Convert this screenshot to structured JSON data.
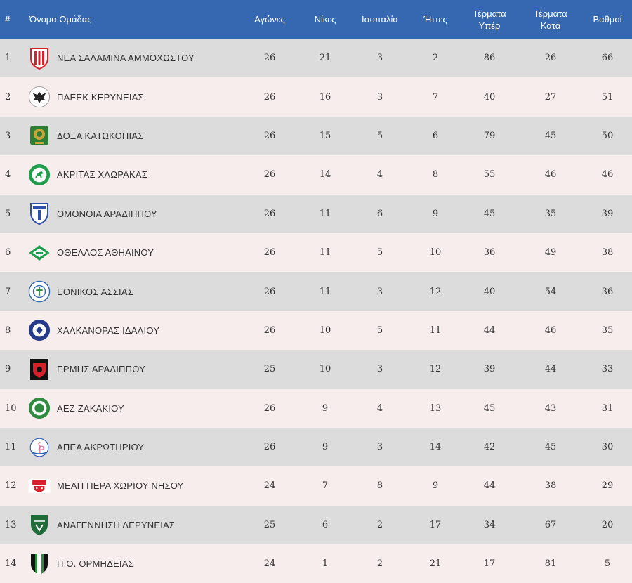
{
  "table": {
    "headers": {
      "rank": "#",
      "team": "Όνομα Ομάδας",
      "played": "Αγώνες",
      "wins": "Νίκες",
      "draws": "Ισοπαλία",
      "losses": "Ήττες",
      "goals_for_1": "Τέρματα",
      "goals_for_2": "Υπέρ",
      "goals_against_1": "Τέρματα",
      "goals_against_2": "Κατά",
      "points": "Βαθμοί"
    },
    "rows": [
      {
        "rank": "1",
        "team": "ΝΕΑ ΣΑΛΑΜΙΝΑ ΑΜΜΟΧΩΣΤΟΥ",
        "played": "26",
        "wins": "21",
        "draws": "3",
        "losses": "2",
        "gf": "86",
        "ga": "26",
        "points": "66"
      },
      {
        "rank": "2",
        "team": "ΠΑΕΕΚ ΚΕΡΥΝΕΙΑΣ",
        "played": "26",
        "wins": "16",
        "draws": "3",
        "losses": "7",
        "gf": "40",
        "ga": "27",
        "points": "51"
      },
      {
        "rank": "3",
        "team": "ΔΟΞΑ ΚΑΤΩΚΟΠΙΑΣ",
        "played": "26",
        "wins": "15",
        "draws": "5",
        "losses": "6",
        "gf": "79",
        "ga": "45",
        "points": "50"
      },
      {
        "rank": "4",
        "team": "ΑΚΡΙΤΑΣ ΧΛΩΡΑΚΑΣ",
        "played": "26",
        "wins": "14",
        "draws": "4",
        "losses": "8",
        "gf": "55",
        "ga": "46",
        "points": "46"
      },
      {
        "rank": "5",
        "team": "ΟΜΟΝΟΙΑ ΑΡΑΔΙΠΠΟΥ",
        "played": "26",
        "wins": "11",
        "draws": "6",
        "losses": "9",
        "gf": "45",
        "ga": "35",
        "points": "39"
      },
      {
        "rank": "6",
        "team": "ΟΘΕΛΛΟΣ ΑΘΗΑΙΝΟΥ",
        "played": "26",
        "wins": "11",
        "draws": "5",
        "losses": "10",
        "gf": "36",
        "ga": "49",
        "points": "38"
      },
      {
        "rank": "7",
        "team": "ΕΘΝΙΚΟΣ ΑΣΣΙΑΣ",
        "played": "26",
        "wins": "11",
        "draws": "3",
        "losses": "12",
        "gf": "40",
        "ga": "54",
        "points": "36"
      },
      {
        "rank": "8",
        "team": "ΧΑΛΚΑΝΟΡΑΣ ΙΔΑΛΙΟΥ",
        "played": "26",
        "wins": "10",
        "draws": "5",
        "losses": "11",
        "gf": "44",
        "ga": "46",
        "points": "35"
      },
      {
        "rank": "9",
        "team": "ΕΡΜΗΣ ΑΡΑΔΙΠΠΟΥ",
        "played": "25",
        "wins": "10",
        "draws": "3",
        "losses": "12",
        "gf": "39",
        "ga": "44",
        "points": "33"
      },
      {
        "rank": "10",
        "team": "ΑΕΖ ΖΑΚΑΚΙΟΥ",
        "played": "26",
        "wins": "9",
        "draws": "4",
        "losses": "13",
        "gf": "45",
        "ga": "43",
        "points": "31"
      },
      {
        "rank": "11",
        "team": "ΑΠΕΑ ΑΚΡΩΤΗΡΙΟΥ",
        "played": "26",
        "wins": "9",
        "draws": "3",
        "losses": "14",
        "gf": "42",
        "ga": "45",
        "points": "30"
      },
      {
        "rank": "12",
        "team": "ΜΕΑΠ ΠΕΡΑ ΧΩΡΙΟΥ ΝΗΣΟΥ",
        "played": "24",
        "wins": "7",
        "draws": "8",
        "losses": "9",
        "gf": "44",
        "ga": "38",
        "points": "29"
      },
      {
        "rank": "13",
        "team": "ΑΝΑΓΕΝΝΗΣΗ ΔΕΡΥΝΕΙΑΣ",
        "played": "25",
        "wins": "6",
        "draws": "2",
        "losses": "17",
        "gf": "34",
        "ga": "67",
        "points": "20"
      },
      {
        "rank": "14",
        "team": "Π.Ο. ΟΡΜΗΔΕΙΑΣ",
        "played": "24",
        "wins": "1",
        "draws": "2",
        "losses": "21",
        "gf": "17",
        "ga": "81",
        "points": "5"
      }
    ]
  },
  "logos": [
    {
      "icon": "nea-salamina-crest-icon",
      "primary": "#d7212a",
      "secondary": "#ffffff"
    },
    {
      "icon": "paeek-eagle-crest-icon",
      "primary": "#222222",
      "secondary": "#ffffff"
    },
    {
      "icon": "doxa-crest-icon",
      "primary": "#2e7d32",
      "secondary": "#c9a43a"
    },
    {
      "icon": "akritas-horse-crest-icon",
      "primary": "#1e9e4a",
      "secondary": "#ffffff"
    },
    {
      "icon": "omonoia-shield-icon",
      "primary": "#2f4fa8",
      "secondary": "#ffffff"
    },
    {
      "icon": "othellos-diamond-crest-icon",
      "primary": "#1e9e4a",
      "secondary": "#ffffff"
    },
    {
      "icon": "ethnikos-crest-icon",
      "primary": "#3568b0",
      "secondary": "#ffffff"
    },
    {
      "icon": "chalkanoras-crest-icon",
      "primary": "#263a8c",
      "secondary": "#ffffff"
    },
    {
      "icon": "ermis-crest-icon",
      "primary": "#d7212a",
      "secondary": "#111111"
    },
    {
      "icon": "aez-crest-icon",
      "primary": "#2e8b3f",
      "secondary": "#ffffff"
    },
    {
      "icon": "apea-flamingo-crest-icon",
      "primary": "#2f5fb0",
      "secondary": "#ffffff"
    },
    {
      "icon": "meap-crest-icon",
      "primary": "#d7212a",
      "secondary": "#ffffff"
    },
    {
      "icon": "anagennisi-shield-icon",
      "primary": "#1f6b3a",
      "secondary": "#ffffff"
    },
    {
      "icon": "ormideia-shield-icon",
      "primary": "#111111",
      "secondary": "#2e8b3f"
    }
  ]
}
